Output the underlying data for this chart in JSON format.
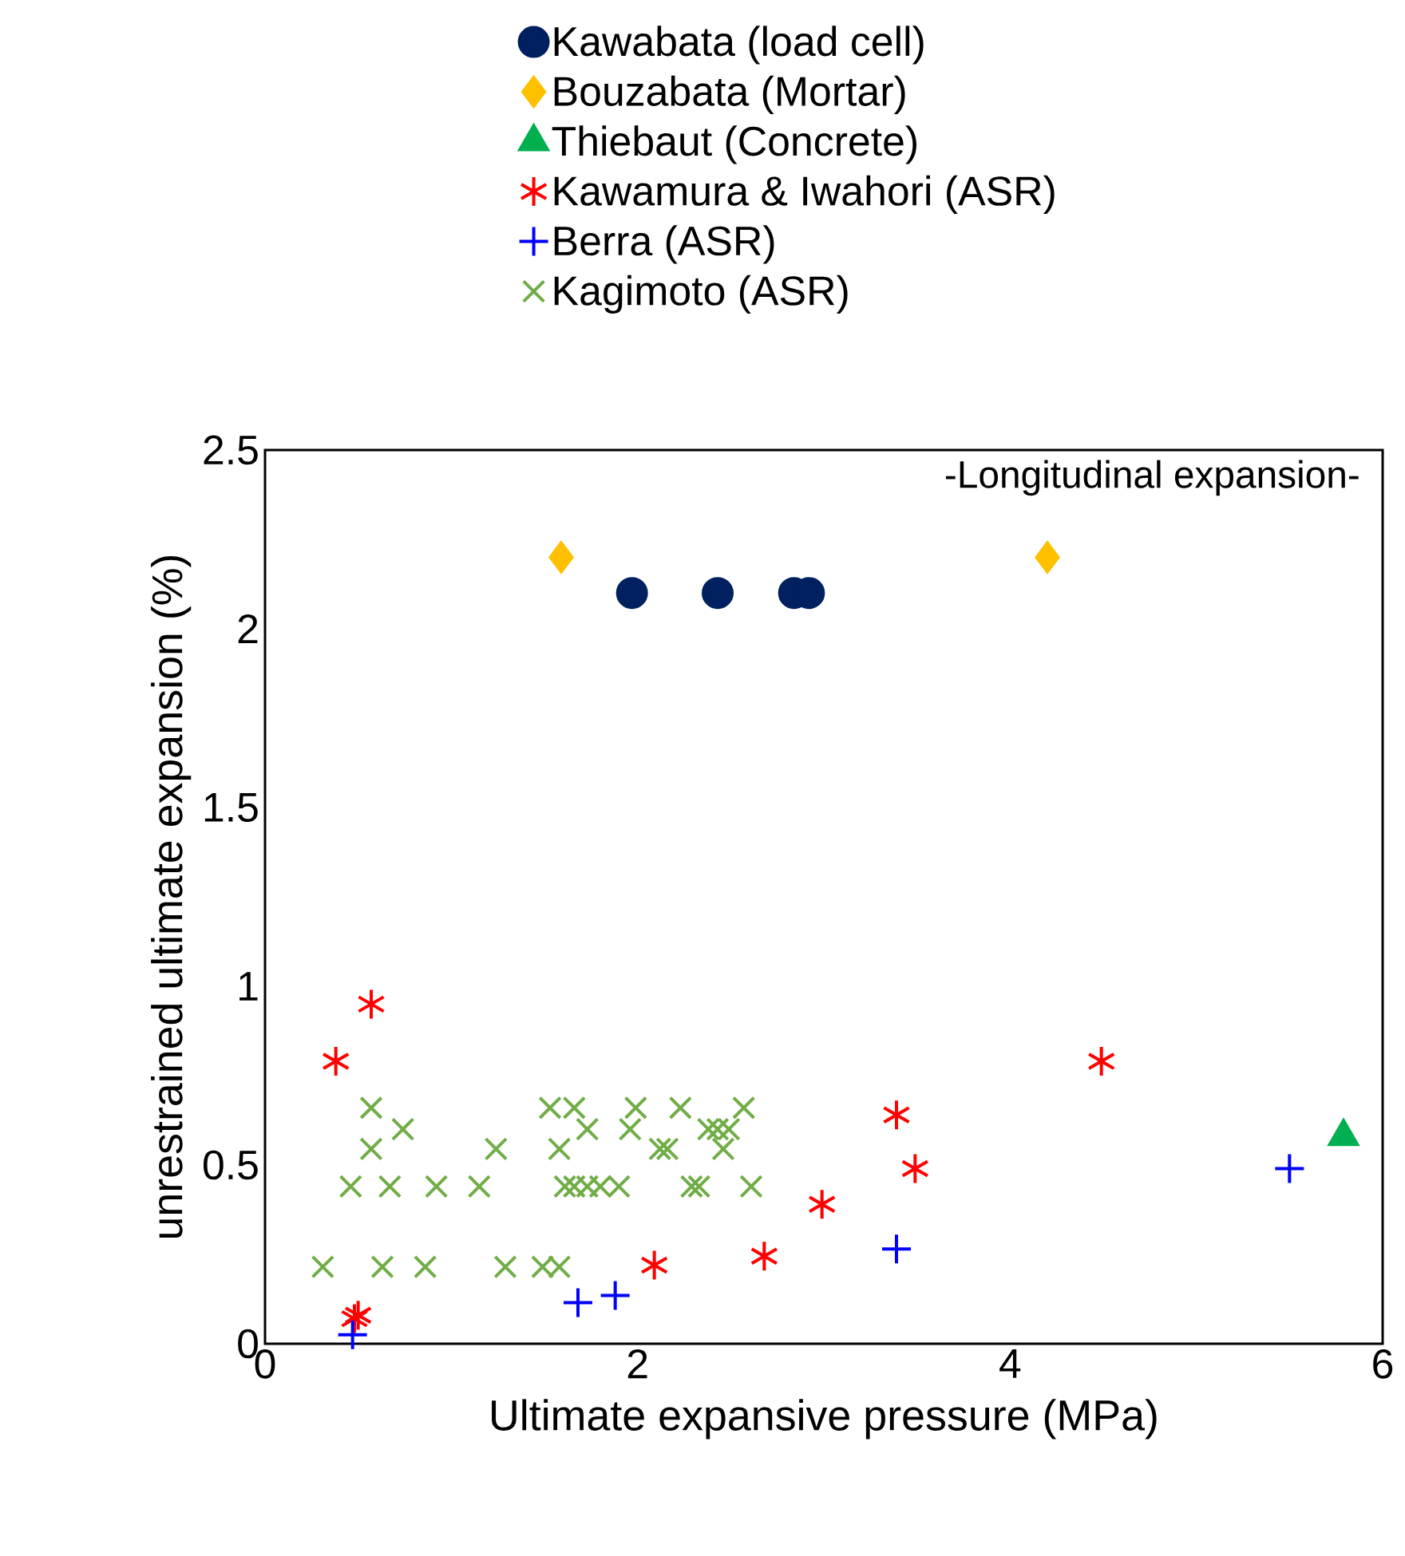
{
  "chart_data": {
    "type": "scatter",
    "xlabel": "Ultimate expansive pressure (MPa)",
    "ylabel": "unrestrained ultimate expansion (%)",
    "xlim": [
      0,
      6
    ],
    "ylim": [
      0,
      2.5
    ],
    "xticks": [
      0,
      2,
      4,
      6
    ],
    "yticks": [
      0,
      0.5,
      1,
      1.5,
      2,
      2.5
    ],
    "grid": false,
    "legend": "top",
    "annotations": [
      "-Longitudinal expansion-"
    ],
    "series": [
      {
        "name": "Kawabata (load cell)",
        "color": "#002060",
        "marker": "circle",
        "x": [
          1.97,
          2.43,
          2.84,
          2.92
        ],
        "values": [
          2.1,
          2.1,
          2.1,
          2.1
        ]
      },
      {
        "name": "Bouzabata (Mortar)",
        "color": "#ffc000",
        "marker": "diamond",
        "x": [
          1.59,
          4.2
        ],
        "values": [
          2.2,
          2.2
        ]
      },
      {
        "name": "Thiebaut (Concrete)",
        "color": "#00b050",
        "marker": "triangle",
        "x": [
          5.79
        ],
        "values": [
          0.58
        ]
      },
      {
        "name": "Kawamura & Iwahori (ASR)",
        "color": "#ff0000",
        "x": [
          0.57,
          0.38,
          0.48,
          0.5,
          2.09,
          2.68,
          2.99,
          3.39,
          3.49,
          4.49
        ],
        "values": [
          0.95,
          0.79,
          0.07,
          0.08,
          0.22,
          0.245,
          0.39,
          0.64,
          0.49,
          0.79
        ]
      },
      {
        "name": "Berra (ASR)",
        "color": "#0000ff",
        "marker": "plus",
        "x": [
          0.47,
          1.68,
          1.88,
          3.39,
          5.5
        ],
        "values": [
          0.025,
          0.115,
          0.135,
          0.265,
          0.49
        ]
      },
      {
        "name": "Kagimoto (ASR)",
        "color": "#70ad47",
        "marker": "cross",
        "x": [
          0.57,
          1.53,
          1.66,
          1.99,
          2.23,
          2.57,
          0.74,
          1.73,
          1.96,
          2.38,
          2.43,
          2.49,
          0.57,
          1.24,
          1.58,
          2.12,
          2.16,
          2.46,
          0.46,
          0.67,
          0.92,
          1.15,
          1.61,
          1.66,
          1.73,
          1.8,
          1.9,
          2.29,
          2.33,
          2.61,
          0.31,
          0.63,
          0.86,
          1.29,
          1.49,
          1.58
        ],
        "values": [
          0.66,
          0.66,
          0.66,
          0.66,
          0.66,
          0.66,
          0.6,
          0.6,
          0.6,
          0.6,
          0.6,
          0.6,
          0.545,
          0.545,
          0.545,
          0.545,
          0.545,
          0.545,
          0.44,
          0.44,
          0.44,
          0.44,
          0.44,
          0.44,
          0.44,
          0.44,
          0.44,
          0.44,
          0.44,
          0.44,
          0.215,
          0.215,
          0.215,
          0.215,
          0.215,
          0.215
        ]
      }
    ]
  }
}
